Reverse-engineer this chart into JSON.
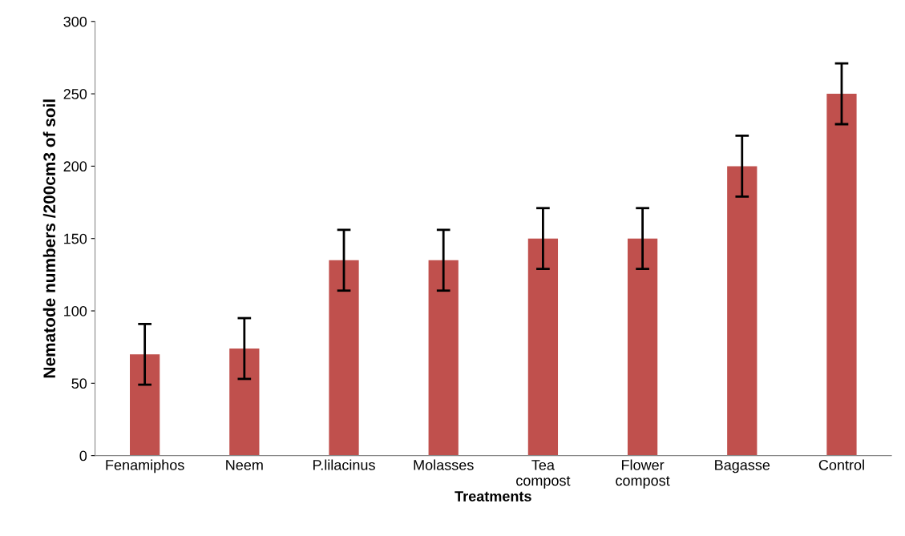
{
  "chart_data": {
    "type": "bar",
    "xlabel": "Treatments",
    "ylabel": "Nematode numbers /200cm3 of soil",
    "categories": [
      "Fenamiphos",
      "Neem",
      "P.lilacinus",
      "Molasses",
      "Tea\ncompost",
      "Flower\ncompost",
      "Bagasse",
      "Control"
    ],
    "values": [
      70,
      74,
      135,
      135,
      150,
      150,
      200,
      250
    ],
    "errors": [
      21,
      21,
      21,
      21,
      21,
      21,
      21,
      21
    ],
    "color": "#c0504d",
    "ylim": [
      0,
      300
    ],
    "yticks": [
      0,
      50,
      100,
      150,
      200,
      250,
      300
    ],
    "grid": false,
    "legend": false
  }
}
